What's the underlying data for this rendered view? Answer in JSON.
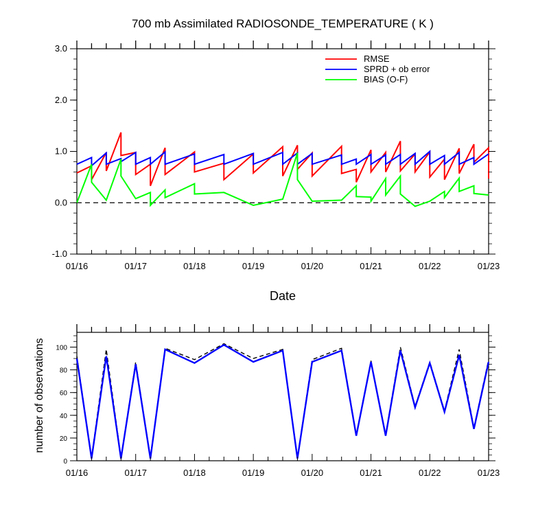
{
  "chart_data": [
    {
      "type": "line",
      "title": "700 mb Assimilated RADIOSONDE_TEMPERATURE ( K )",
      "xlabel": "Date",
      "ylabel": "",
      "x_tick_labels": [
        "01/16",
        "01/17",
        "01/18",
        "01/19",
        "01/20",
        "01/21",
        "01/22",
        "01/23"
      ],
      "xlim_days": [
        16,
        23
      ],
      "ylim": [
        -1,
        3
      ],
      "y_tick_labels": [
        "-1.0",
        "0.0",
        "1.0",
        "2.0",
        "3.0"
      ],
      "y_ticks": [
        -1,
        0,
        1,
        2,
        3
      ],
      "zero_line": "dashed",
      "legend_position": "top-right",
      "series": [
        {
          "name": "RMSE",
          "color": "#ff0000",
          "x": [
            16.0,
            16.25,
            16.25,
            16.5,
            16.5,
            16.75,
            16.75,
            17.0,
            17.0,
            17.25,
            17.25,
            17.5,
            17.5,
            18.0,
            18.0,
            18.5,
            18.5,
            19.0,
            19.0,
            19.5,
            19.5,
            19.75,
            19.75,
            20.0,
            20.0,
            20.5,
            20.5,
            20.75,
            20.75,
            21.0,
            21.0,
            21.25,
            21.25,
            21.5,
            21.5,
            21.75,
            21.75,
            22.0,
            22.0,
            22.25,
            22.25,
            22.5,
            22.5,
            22.75,
            22.75,
            23.0,
            23.0
          ],
          "y": [
            0.58,
            0.72,
            0.45,
            0.98,
            0.62,
            1.37,
            0.92,
            0.98,
            0.55,
            0.75,
            0.33,
            1.07,
            0.55,
            0.99,
            0.6,
            0.77,
            0.45,
            0.95,
            0.58,
            1.09,
            0.52,
            1.12,
            0.65,
            0.97,
            0.52,
            1.1,
            0.57,
            0.65,
            0.4,
            1.03,
            0.6,
            0.98,
            0.6,
            1.2,
            0.62,
            0.95,
            0.6,
            0.99,
            0.5,
            0.85,
            0.45,
            1.06,
            0.57,
            1.14,
            0.79,
            1.07,
            0.47
          ]
        },
        {
          "name": "SPRD + ob error",
          "color": "#0000ff",
          "x": [
            16.0,
            16.25,
            16.25,
            16.5,
            16.5,
            16.75,
            16.75,
            17.0,
            17.0,
            17.25,
            17.25,
            17.5,
            17.5,
            18.0,
            18.0,
            18.5,
            18.5,
            19.0,
            19.0,
            19.5,
            19.5,
            19.75,
            19.75,
            20.0,
            20.0,
            20.5,
            20.5,
            20.75,
            20.75,
            21.0,
            21.0,
            21.25,
            21.25,
            21.5,
            21.5,
            21.75,
            21.75,
            22.0,
            22.0,
            22.25,
            22.25,
            22.5,
            22.5,
            22.75,
            22.75,
            23.0
          ],
          "y": [
            0.75,
            0.88,
            0.72,
            0.97,
            0.75,
            0.86,
            0.8,
            0.98,
            0.75,
            0.88,
            0.75,
            0.99,
            0.75,
            0.95,
            0.75,
            0.94,
            0.75,
            0.96,
            0.75,
            0.98,
            0.75,
            0.97,
            0.75,
            0.96,
            0.75,
            0.93,
            0.75,
            0.85,
            0.75,
            0.94,
            0.75,
            0.93,
            0.75,
            0.94,
            0.75,
            0.96,
            0.75,
            1.0,
            0.75,
            0.92,
            0.75,
            0.98,
            0.75,
            0.88,
            0.75,
            0.95
          ]
        },
        {
          "name": "BIAS (O-F)",
          "color": "#00ff00",
          "x": [
            16.0,
            16.25,
            16.25,
            16.5,
            16.75,
            16.75,
            17.0,
            17.25,
            17.25,
            17.5,
            17.5,
            18.0,
            18.0,
            18.5,
            19.0,
            19.5,
            19.75,
            19.75,
            20.0,
            20.5,
            20.75,
            20.75,
            21.0,
            21.0,
            21.25,
            21.25,
            21.5,
            21.5,
            21.75,
            22.0,
            22.25,
            22.25,
            22.5,
            22.5,
            22.75,
            22.75,
            23.0
          ],
          "y": [
            0.0,
            0.75,
            0.4,
            0.05,
            0.85,
            0.52,
            0.08,
            0.2,
            -0.05,
            0.25,
            0.1,
            0.37,
            0.17,
            0.2,
            -0.05,
            0.07,
            0.97,
            0.45,
            0.03,
            0.05,
            0.33,
            0.12,
            0.11,
            0.03,
            0.47,
            0.15,
            0.52,
            0.17,
            -0.07,
            0.03,
            0.22,
            0.1,
            0.48,
            0.22,
            0.33,
            0.18,
            0.15
          ]
        }
      ]
    },
    {
      "type": "line",
      "title": "",
      "xlabel": "",
      "ylabel": "number of observations",
      "x_tick_labels": [
        "01/16",
        "01/17",
        "01/18",
        "01/19",
        "01/20",
        "01/21",
        "01/22",
        "01/23"
      ],
      "xlim_days": [
        16,
        23
      ],
      "ylim": [
        0,
        113
      ],
      "y_tick_labels": [
        "0",
        "20",
        "40",
        "60",
        "80",
        "100"
      ],
      "y_ticks": [
        0,
        20,
        40,
        60,
        80,
        100
      ],
      "series": [
        {
          "name": "",
          "color": "#000000",
          "style": "dashed",
          "x": [
            16.0,
            16.25,
            16.5,
            16.75,
            17.0,
            17.25,
            17.5,
            18.0,
            18.5,
            19.0,
            19.5,
            19.75,
            20.0,
            20.5,
            20.75,
            21.0,
            21.25,
            21.5,
            21.75,
            22.0,
            22.25,
            22.5,
            22.75,
            23.0
          ],
          "y": [
            92,
            3,
            98,
            3,
            87,
            3,
            99,
            89,
            103,
            90,
            98,
            3,
            89,
            99,
            23,
            88,
            23,
            100,
            48,
            87,
            44,
            98,
            29,
            89
          ]
        },
        {
          "name": "",
          "color": "#0000ff",
          "x": [
            16.0,
            16.25,
            16.5,
            16.75,
            17.0,
            17.25,
            17.5,
            18.0,
            18.5,
            19.0,
            19.5,
            19.75,
            20.0,
            20.5,
            20.75,
            21.0,
            21.25,
            21.5,
            21.75,
            22.0,
            22.25,
            22.5,
            22.75,
            23.0
          ],
          "y": [
            90,
            2,
            92,
            2,
            85,
            2,
            98,
            86,
            102,
            87,
            97,
            2,
            87,
            97,
            22,
            87,
            22,
            97,
            47,
            86,
            43,
            93,
            28,
            87
          ]
        }
      ]
    }
  ]
}
